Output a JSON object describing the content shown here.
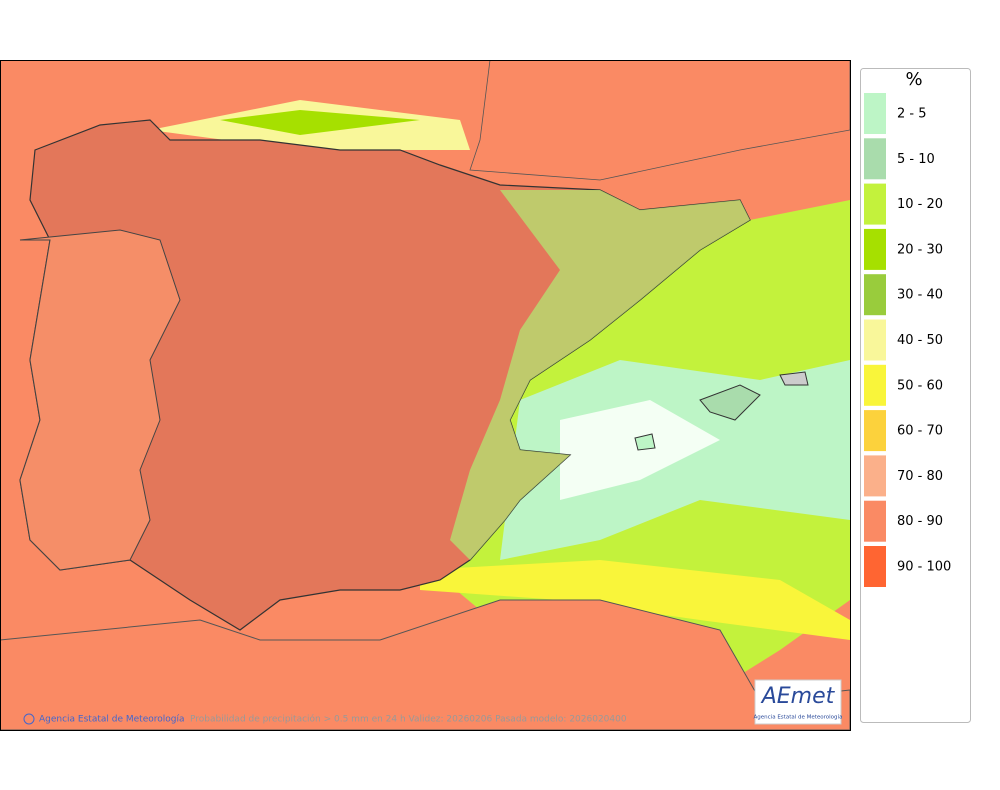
{
  "legend": {
    "title": "%",
    "items": [
      {
        "label": "2 - 5",
        "color": "#bdf5c6"
      },
      {
        "label": "5 - 10",
        "color": "#a9dcac"
      },
      {
        "label": "10 - 20",
        "color": "#c3f23c"
      },
      {
        "label": "20 - 30",
        "color": "#a6e000"
      },
      {
        "label": "30 - 40",
        "color": "#99cc3c"
      },
      {
        "label": "40 - 50",
        "color": "#f9f79a"
      },
      {
        "label": "50 - 60",
        "color": "#f9f53a"
      },
      {
        "label": "60 - 70",
        "color": "#fcd23c"
      },
      {
        "label": "70 - 80",
        "color": "#fbb08a"
      },
      {
        "label": "80 - 90",
        "color": "#fa8a64"
      },
      {
        "label": "90 - 100",
        "color": "#ff6532"
      }
    ]
  },
  "footer": {
    "credit": "Agencia Estatal de Meteorología",
    "caption": "Probabilidad de precipitación > 0.5 mm en 24 h Validez: 20260206 Pasada modelo: 2026020400"
  },
  "logo": {
    "name": "AEmet",
    "subtitle": "Agencia Estatal de Meteorología"
  }
}
